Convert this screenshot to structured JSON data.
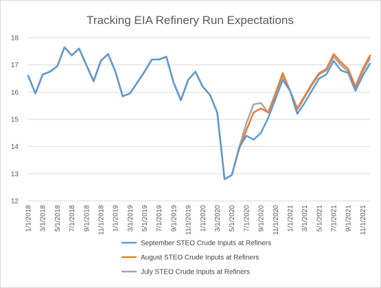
{
  "chart_data": {
    "type": "line",
    "title": "Tracking EIA Refinery Run Expectations",
    "xlabel": "",
    "ylabel": "",
    "ylim": [
      12,
      18
    ],
    "yticks": [
      12,
      13,
      14,
      15,
      16,
      17,
      18
    ],
    "grid": true,
    "legend_position": "bottom",
    "x_tick_labels": [
      "1/1/2018",
      "3/1/2018",
      "5/1/2018",
      "7/1/2018",
      "9/1/2018",
      "11/1/2018",
      "1/1/2019",
      "3/1/2019",
      "5/1/2019",
      "7/1/2019",
      "9/1/2019",
      "11/1/2019",
      "1/1/2020",
      "3/1/2020",
      "5/1/2020",
      "7/1/2020",
      "9/1/2020",
      "11/1/2020",
      "1/1/2021",
      "3/1/2021",
      "5/1/2021",
      "7/1/2021",
      "9/1/2021",
      "11/1/2021"
    ],
    "x": [
      "1/1/2018",
      "2/1/2018",
      "3/1/2018",
      "4/1/2018",
      "5/1/2018",
      "6/1/2018",
      "7/1/2018",
      "8/1/2018",
      "9/1/2018",
      "10/1/2018",
      "11/1/2018",
      "12/1/2018",
      "1/1/2019",
      "2/1/2019",
      "3/1/2019",
      "4/1/2019",
      "5/1/2019",
      "6/1/2019",
      "7/1/2019",
      "8/1/2019",
      "9/1/2019",
      "10/1/2019",
      "11/1/2019",
      "12/1/2019",
      "1/1/2020",
      "2/1/2020",
      "3/1/2020",
      "4/1/2020",
      "5/1/2020",
      "6/1/2020",
      "7/1/2020",
      "8/1/2020",
      "9/1/2020",
      "10/1/2020",
      "11/1/2020",
      "12/1/2020",
      "1/1/2021",
      "2/1/2021",
      "3/1/2021",
      "4/1/2021",
      "5/1/2021",
      "6/1/2021",
      "7/1/2021",
      "8/1/2021",
      "9/1/2021",
      "10/1/2021",
      "11/1/2021",
      "12/1/2021"
    ],
    "series": [
      {
        "name": "September STEO Crude Inputs at Refiners",
        "color": "#5b9bd5",
        "values": [
          16.6,
          15.95,
          16.65,
          16.75,
          16.95,
          17.65,
          17.35,
          17.6,
          17.0,
          16.4,
          17.15,
          17.4,
          16.75,
          15.85,
          15.95,
          16.35,
          16.75,
          17.2,
          17.2,
          17.3,
          16.35,
          15.7,
          16.45,
          16.75,
          16.2,
          15.9,
          15.25,
          12.8,
          12.95,
          13.95,
          14.4,
          14.25,
          14.5,
          15.05,
          15.75,
          16.45,
          16.05,
          15.2,
          15.6,
          16.05,
          16.5,
          16.65,
          17.15,
          16.8,
          16.7,
          16.05,
          16.6,
          17.05
        ]
      },
      {
        "name": "August STEO Crude Inputs at Refiners",
        "color": "#ed7d31",
        "values": [
          16.6,
          15.95,
          16.65,
          16.75,
          16.95,
          17.65,
          17.35,
          17.6,
          17.0,
          16.4,
          17.15,
          17.4,
          16.75,
          15.85,
          15.95,
          16.35,
          16.75,
          17.2,
          17.2,
          17.3,
          16.35,
          15.7,
          16.45,
          16.75,
          16.2,
          15.9,
          15.25,
          12.8,
          12.95,
          13.9,
          14.6,
          15.25,
          15.4,
          15.25,
          15.95,
          16.7,
          16.05,
          15.4,
          15.85,
          16.3,
          16.7,
          16.85,
          17.4,
          17.1,
          16.85,
          16.2,
          16.85,
          17.35
        ]
      },
      {
        "name": "July STEO Crude Inputs at Refiners",
        "color": "#a5a5a5",
        "values": [
          16.6,
          15.95,
          16.65,
          16.75,
          16.95,
          17.65,
          17.35,
          17.6,
          17.0,
          16.4,
          17.15,
          17.4,
          16.75,
          15.85,
          15.95,
          16.35,
          16.75,
          17.2,
          17.2,
          17.3,
          16.35,
          15.7,
          16.45,
          16.75,
          16.2,
          15.9,
          15.25,
          12.8,
          12.95,
          13.95,
          14.85,
          15.55,
          15.6,
          15.25,
          15.85,
          16.6,
          16.05,
          15.35,
          15.8,
          16.25,
          16.65,
          16.8,
          17.3,
          17.0,
          16.75,
          16.15,
          16.75,
          17.25
        ]
      }
    ]
  }
}
